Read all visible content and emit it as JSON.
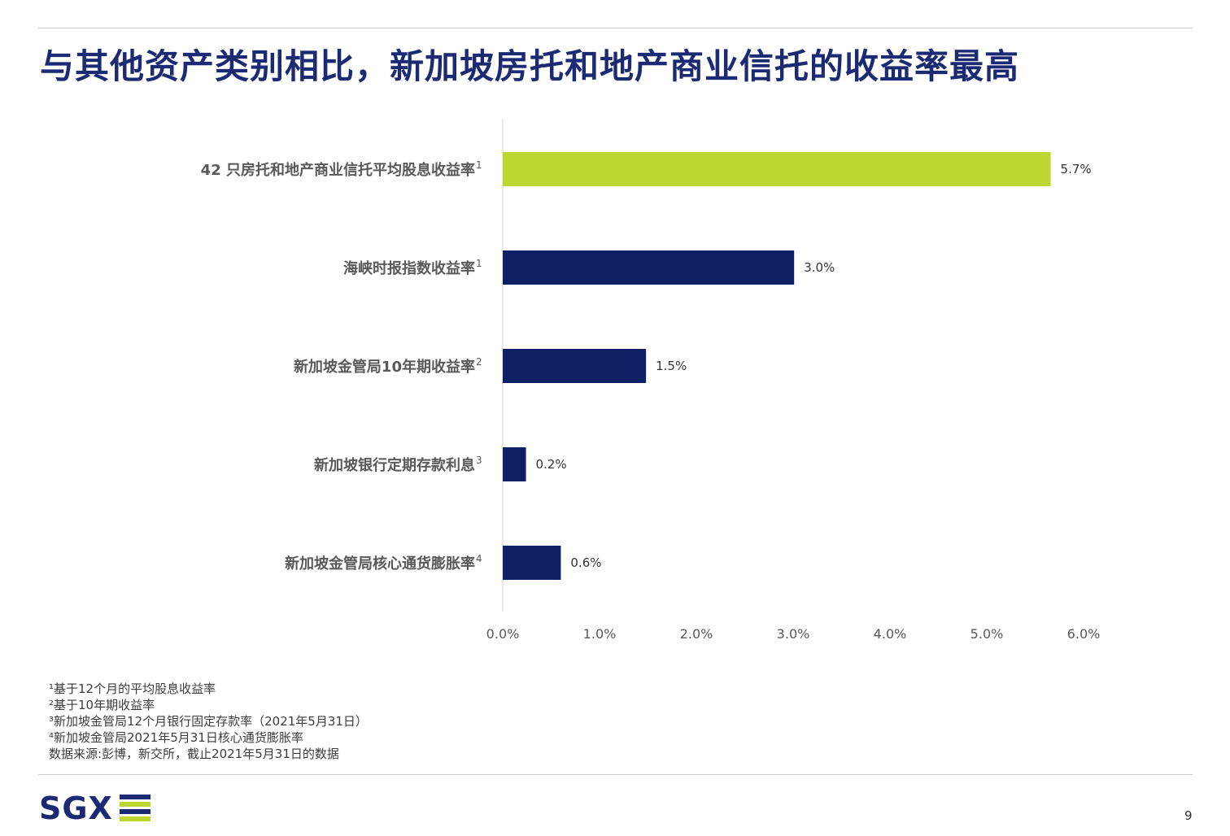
{
  "title": "与其他资产类别相比，新加坡房托和地产商业信托的收益率最高",
  "chart_data": {
    "type": "bar",
    "orientation": "horizontal",
    "categories": [
      {
        "label": "42 只房托和地产商业信托平均股息收益率",
        "sup": "1"
      },
      {
        "label": "海峡时报指数收益率",
        "sup": "1"
      },
      {
        "label": "新加坡金管局10年期收益率",
        "sup": "2"
      },
      {
        "label": "新加坡银行定期存款利息",
        "sup": "3"
      },
      {
        "label": "新加坡金管局核心通货膨胀率",
        "sup": "4"
      }
    ],
    "values": [
      5.66,
      3.01,
      1.48,
      0.24,
      0.6
    ],
    "value_labels": [
      "5.7%",
      "3.0%",
      "1.5%",
      "0.2%",
      "0.6%"
    ],
    "bar_colors": [
      "#bdd730",
      "#0f1f63",
      "#0f1f63",
      "#0f1f63",
      "#0f1f63"
    ],
    "xlim": [
      0,
      6
    ],
    "xticks": [
      {
        "value": 0,
        "label": "0.0%"
      },
      {
        "value": 1,
        "label": "1.0%"
      },
      {
        "value": 2,
        "label": "2.0%"
      },
      {
        "value": 3,
        "label": "3.0%"
      },
      {
        "value": 4,
        "label": "4.0%"
      },
      {
        "value": 5,
        "label": "5.0%"
      },
      {
        "value": 6,
        "label": "6.0%"
      }
    ],
    "grid": false,
    "legend": "none"
  },
  "footnotes": [
    "¹基于12个月的平均股息收益率",
    "²基于10年期收益率",
    "³新加坡金管局12个月银行固定存款率（2021年5月31日）",
    "⁴新加坡金管局2021年5月31日核心通货膨胀率",
    "数据来源:彭博，新交所，截止2021年5月31日的数据"
  ],
  "logo": {
    "text": "SGX"
  },
  "page_number": "9",
  "colors": {
    "brand_navy": "#1b2a72",
    "accent_lime": "#bdd730",
    "bar_navy": "#0f1f63"
  }
}
